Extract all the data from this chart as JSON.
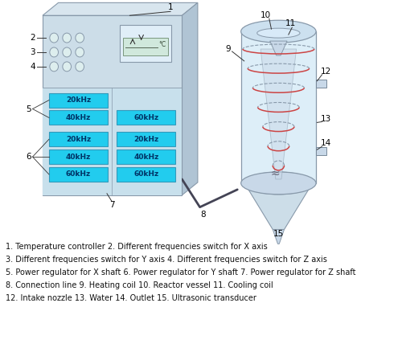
{
  "caption_lines": [
    "1. Temperature controller 2. Different frequencies switch for X axis",
    "3. Different frequencies switch for Y axis 4. Different frequencies switch for Z axis",
    "5. Power regulator for X shaft 6. Power regulator for Y shaft 7. Power regulator for Z shaft",
    "8. Connection line 9. Heating coil 10. Reactor vessel 11. Cooling coil",
    "12. Intake nozzle 13. Water 14. Outlet 15. Ultrasonic transducer"
  ],
  "controller_front": "#ccdde8",
  "controller_top": "#d8e5ee",
  "controller_right": "#b0c4d4",
  "btn_face": "#22ccee",
  "btn_edge": "#3399bb",
  "btn_text": "#003366",
  "vessel_fill": "#ddeef8",
  "vessel_edge": "#8899aa",
  "coil_red": "#cc4444",
  "coil_grey": "#8899aa",
  "cone_fill": "#ccdde8",
  "label_fs": 7.5,
  "btn_fs": 6.5,
  "caption_fs": 7.0
}
